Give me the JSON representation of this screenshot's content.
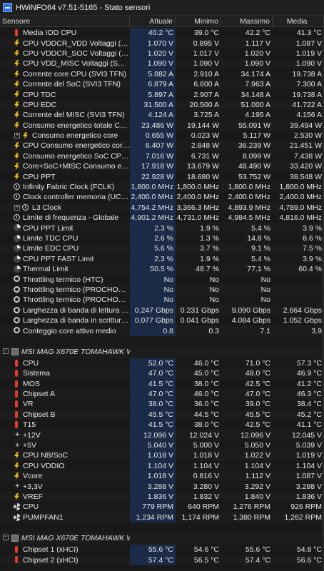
{
  "window": {
    "title": "HWiNFO64 v7.51-5165 - Stato sensori"
  },
  "columns": {
    "sensor": "Sensore",
    "current": "Attuale",
    "min": "Minimo",
    "max": "Massimo",
    "avg": "Media"
  },
  "rows": [
    {
      "icon": "thermometer-icon",
      "name": "Media IOD CPU",
      "cur": "40.2 °C",
      "min": "39.0 °C",
      "max": "42.2 °C",
      "avg": "41.3 °C"
    },
    {
      "icon": "bolt-icon",
      "name": "CPU VDDCR_VDD Voltaggi (SVI3 ...",
      "cur": "1.070 V",
      "min": "0.895 V",
      "max": "1.117 V",
      "avg": "1.087 V"
    },
    {
      "icon": "bolt-icon",
      "name": "CPU VDDCR_SOC Voltaggi (SVI3 ...",
      "cur": "1.020 V",
      "min": "1.017 V",
      "max": "1.020 V",
      "avg": "1.019 V"
    },
    {
      "icon": "bolt-icon",
      "name": "CPU VDD_MISC Voltaggi (SVI3 TFN)",
      "cur": "1.090 V",
      "min": "1.090 V",
      "max": "1.090 V",
      "avg": "1.090 V"
    },
    {
      "icon": "bolt-icon",
      "name": "Corrente core CPU (SVI3 TFN)",
      "cur": "5.882 A",
      "min": "2.910 A",
      "max": "34.174 A",
      "avg": "19.738 A"
    },
    {
      "icon": "bolt-icon",
      "name": "Corrente del SoC (SVI3 TFN)",
      "cur": "6.879 A",
      "min": "6.600 A",
      "max": "7.963 A",
      "avg": "7.300 A"
    },
    {
      "icon": "bolt-icon",
      "name": "CPU TDC",
      "cur": "5.897 A",
      "min": "2.907 A",
      "max": "34.148 A",
      "avg": "19.738 A"
    },
    {
      "icon": "bolt-icon",
      "name": "CPU EDC",
      "cur": "31.500 A",
      "min": "20.500 A",
      "max": "51.000 A",
      "avg": "41.722 A"
    },
    {
      "icon": "bolt-icon",
      "name": "Corrente del MISC (SVI3 TFN)",
      "cur": "4.124 A",
      "min": "3.725 A",
      "max": "4.195 A",
      "avg": "4.156 A"
    },
    {
      "icon": "bolt-icon",
      "name": "Consumo energetico totale CPU",
      "cur": "23.486 W",
      "min": "19.144 W",
      "max": "55.091 W",
      "avg": "39.494 W"
    },
    {
      "icon": "bolt-icon",
      "name": "Consumo energetico core",
      "cur": "0.655 W",
      "min": "0.023 W",
      "max": "5.117 W",
      "avg": "2.530 W",
      "sub": true,
      "expander": "+"
    },
    {
      "icon": "bolt-icon",
      "name": "CPU Consumo energetico core (S...",
      "cur": "6.407 W",
      "min": "2.848 W",
      "max": "36.239 W",
      "avg": "21.451 W"
    },
    {
      "icon": "bolt-icon",
      "name": "Consumo energetico SoC CPU (S...",
      "cur": "7.016 W",
      "min": "6.731 W",
      "max": "8.099 W",
      "avg": "7.438 W"
    },
    {
      "icon": "bolt-icon",
      "name": "Core+SoC+MISC Consumo ener...",
      "cur": "17.918 W",
      "min": "13.679 W",
      "max": "48.490 W",
      "avg": "33.420 W"
    },
    {
      "icon": "bolt-icon",
      "name": "CPU PPT",
      "cur": "22.928 W",
      "min": "18.680 W",
      "max": "53.752 W",
      "avg": "38.548 W"
    },
    {
      "icon": "clock-icon",
      "name": "Infinity Fabric Clock (FCLK)",
      "cur": "1,800.0 MHz",
      "min": "1,800.0 MHz",
      "max": "1,800.0 MHz",
      "avg": "1,800.0 MHz"
    },
    {
      "icon": "clock-icon",
      "name": "Clock controller memoria (UCLK)",
      "cur": "2,400.0 MHz",
      "min": "2,400.0 MHz",
      "max": "2,400.0 MHz",
      "avg": "2,400.0 MHz"
    },
    {
      "icon": "clock-icon",
      "name": "L3 Clock",
      "cur": "4,754.2 MHz",
      "min": "3,366.3 MHz",
      "max": "4,893.9 MHz",
      "avg": "4,789.0 MHz",
      "sub": true,
      "expander": "+"
    },
    {
      "icon": "clock-icon",
      "name": "Limite di frequenza - Globale",
      "cur": "4,901.2 MHz",
      "min": "4,731.0 MHz",
      "max": "4,984.5 MHz",
      "avg": "4,816.0 MHz"
    },
    {
      "icon": "percent-icon",
      "name": "CPU PPT Limit",
      "cur": "2.3 %",
      "min": "1.9 %",
      "max": "5.4 %",
      "avg": "3.9 %"
    },
    {
      "icon": "percent-icon",
      "name": "Limite TDC CPU",
      "cur": "2.6 %",
      "min": "1.3 %",
      "max": "14.8 %",
      "avg": "8.6 %"
    },
    {
      "icon": "percent-icon",
      "name": "Limite EDC CPU",
      "cur": "5.6 %",
      "min": "3.7 %",
      "max": "9.1 %",
      "avg": "7.5 %"
    },
    {
      "icon": "percent-icon",
      "name": "CPU PPT FAST Limit",
      "cur": "2.3 %",
      "min": "1.9 %",
      "max": "5.4 %",
      "avg": "3.9 %"
    },
    {
      "icon": "percent-icon",
      "name": "Thermal Limit",
      "cur": "50.5 %",
      "min": "48.7 %",
      "max": "77.1 %",
      "avg": "60.4 %"
    },
    {
      "icon": "gauge-icon",
      "name": "Throttling termico (HTC)",
      "cur": "No",
      "min": "No",
      "max": "No",
      "avg": ""
    },
    {
      "icon": "gauge-icon",
      "name": "Throttling termico (PROCHOT CPU)",
      "cur": "No",
      "min": "No",
      "max": "No",
      "avg": ""
    },
    {
      "icon": "gauge-icon",
      "name": "Throttling termico (PROCHOT EXT)",
      "cur": "No",
      "min": "No",
      "max": "No",
      "avg": ""
    },
    {
      "icon": "gauge-icon",
      "name": "Larghezza di banda di lettura DRAM",
      "cur": "0.247 Gbps",
      "min": "0.231 Gbps",
      "max": "9.090 Gbps",
      "avg": "2.664 Gbps"
    },
    {
      "icon": "gauge-icon",
      "name": "Larghezza di banda in scrittura D...",
      "cur": "0.077 Gbps",
      "min": "0.041 Gbps",
      "max": "4.084 Gbps",
      "avg": "1.052 Gbps"
    },
    {
      "icon": "gauge-icon",
      "name": "Conteggio core attivo medio",
      "cur": "0.8",
      "min": "0.3",
      "max": "7.1",
      "avg": "3.9"
    },
    {
      "blank": true
    },
    {
      "group": true,
      "name": "MSI MAG X670E TOMAHAWK WI...",
      "expander": "−"
    },
    {
      "icon": "thermometer-icon",
      "name": "CPU",
      "cur": "52.0 °C",
      "min": "46.0 °C",
      "max": "71.0 °C",
      "avg": "57.3 °C"
    },
    {
      "icon": "thermometer-icon",
      "name": "Sistema",
      "cur": "47.0 °C",
      "min": "45.0 °C",
      "max": "48.0 °C",
      "avg": "46.9 °C"
    },
    {
      "icon": "thermometer-icon",
      "name": "MOS",
      "cur": "41.5 °C",
      "min": "38.0 °C",
      "max": "42.5 °C",
      "avg": "41.2 °C"
    },
    {
      "icon": "thermometer-icon",
      "name": "Chipset A",
      "cur": "47.0 °C",
      "min": "46.0 °C",
      "max": "47.0 °C",
      "avg": "46.3 °C"
    },
    {
      "icon": "thermometer-icon",
      "name": "VR",
      "cur": "38.0 °C",
      "min": "36.0 °C",
      "max": "39.0 °C",
      "avg": "38.4 °C"
    },
    {
      "icon": "thermometer-icon",
      "name": "Chipset B",
      "cur": "45.5 °C",
      "min": "44.5 °C",
      "max": "45.5 °C",
      "avg": "45.2 °C"
    },
    {
      "icon": "thermometer-icon",
      "name": "T15",
      "cur": "41.5 °C",
      "min": "38.0 °C",
      "max": "42.5 °C",
      "avg": "41.1 °C"
    },
    {
      "icon": "plus-icon",
      "name": "+12V",
      "cur": "12.096 V",
      "min": "12.024 V",
      "max": "12.096 V",
      "avg": "12.045 V"
    },
    {
      "icon": "plus-icon",
      "name": "+5V",
      "cur": "5.040 V",
      "min": "5.000 V",
      "max": "5.050 V",
      "avg": "5.039 V"
    },
    {
      "icon": "bolt-icon",
      "name": "CPU NB/SoC",
      "cur": "1.018 V",
      "min": "1.018 V",
      "max": "1.022 V",
      "avg": "1.019 V"
    },
    {
      "icon": "bolt-icon",
      "name": "CPU VDDIO",
      "cur": "1.104 V",
      "min": "1.104 V",
      "max": "1.104 V",
      "avg": "1.104 V"
    },
    {
      "icon": "bolt-icon",
      "name": "Vcore",
      "cur": "1.018 V",
      "min": "0.816 V",
      "max": "1.112 V",
      "avg": "1.087 V"
    },
    {
      "icon": "plus-icon",
      "name": "+3,3V",
      "cur": "3.288 V",
      "min": "3.280 V",
      "max": "3.292 V",
      "avg": "3.288 V"
    },
    {
      "icon": "bolt-icon",
      "name": "VREF",
      "cur": "1.836 V",
      "min": "1.832 V",
      "max": "1.840 V",
      "avg": "1.836 V"
    },
    {
      "icon": "fan-icon",
      "name": "CPU",
      "cur": "779 RPM",
      "min": "640 RPM",
      "max": "1,276 RPM",
      "avg": "926 RPM"
    },
    {
      "icon": "fan-icon",
      "name": "PUMPFAN1",
      "cur": "1,234 RPM",
      "min": "1,174 RPM",
      "max": "1,380 RPM",
      "avg": "1,262 RPM"
    },
    {
      "blank": true
    },
    {
      "group": true,
      "name": "MSI MAG X670E TOMAHAWK WI...",
      "expander": "−"
    },
    {
      "icon": "thermometer-icon",
      "name": "Chipset 1 (xHCI)",
      "cur": "55.6 °C",
      "min": "54.6 °C",
      "max": "55.6 °C",
      "avg": "54.8 °C"
    },
    {
      "icon": "thermometer-icon",
      "name": "Chipset 2 (xHCI)",
      "cur": "57.4 °C",
      "min": "56.5 °C",
      "max": "57.4 °C",
      "avg": "56.6 °C"
    }
  ]
}
